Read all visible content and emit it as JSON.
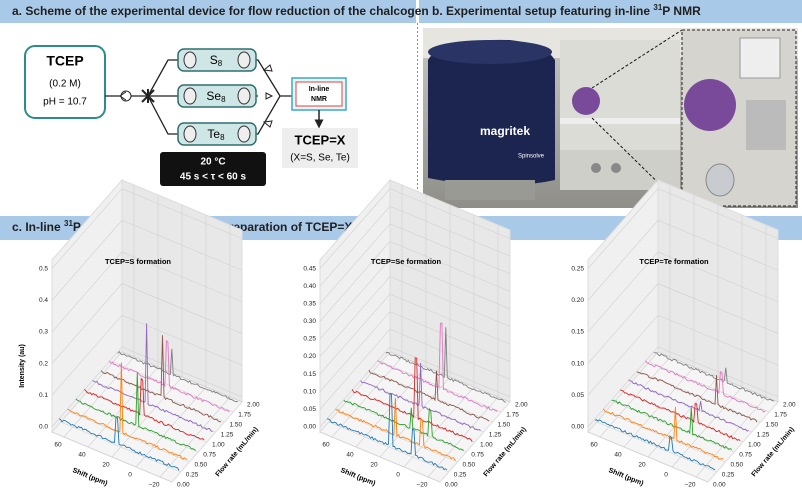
{
  "panel_a": {
    "title": "a. Scheme of the experimental device for flow reduction of the chalcogen",
    "reagent": {
      "name": "TCEP",
      "concentration": "(0.2 M)",
      "ph": "pH = 10.7"
    },
    "columns": [
      {
        "symbol": "S",
        "sub": "8"
      },
      {
        "symbol": "Se",
        "sub": "8"
      },
      {
        "symbol": "Te",
        "sub": "8"
      }
    ],
    "detector": [
      "In-line",
      "NMR"
    ],
    "conditions": [
      "20 °C",
      "45 s < τ < 60 s"
    ],
    "product": {
      "name": "TCEP=X",
      "scope": "(X=S, Se, Te)"
    }
  },
  "panel_b": {
    "title_parts": [
      "b. Experimental setup featuring in-line ",
      "31",
      "P NMR"
    ],
    "brand": "magritek",
    "model": "Spinsolve"
  },
  "panel_c": {
    "title_parts": [
      "c. In-line ",
      "31",
      "P NMR monitoring for the preparation of TCEP=X (S, Se, Te)"
    ],
    "plots": [
      {
        "title": "TCEP=S formation",
        "z_label": "Intensity (au)",
        "z_ticks": [
          "0.0",
          "0.1",
          "0.2",
          "0.3",
          "0.4",
          "0.5"
        ],
        "x_label": "Shift (ppm)",
        "x_ticks": [
          "60",
          "40",
          "20",
          "0",
          "−20"
        ],
        "y_label": "Flow rate (mL/min)",
        "y_ticks": [
          "0.00",
          "0.25",
          "0.50",
          "0.75",
          "1.00",
          "1.25",
          "1.50",
          "1.75",
          "2.00"
        ]
      },
      {
        "title": "TCEP=Se formation",
        "z_ticks": [
          "0.00",
          "0.05",
          "0.10",
          "0.15",
          "0.20",
          "0.25",
          "0.30",
          "0.35",
          "0.40",
          "0.45"
        ],
        "x_label": "Shift (ppm)",
        "x_ticks": [
          "60",
          "40",
          "20",
          "0",
          "−20"
        ],
        "y_label": "Flow rate (mL/min)",
        "y_ticks": [
          "0.00",
          "0.25",
          "0.50",
          "0.75",
          "1.00",
          "1.25",
          "1.50",
          "1.75",
          "2.00"
        ]
      },
      {
        "title": "TCEP=Te formation",
        "z_ticks": [
          "0.00",
          "0.05",
          "0.10",
          "0.15",
          "0.20",
          "0.25"
        ],
        "x_label": "Shift (ppm)",
        "x_ticks": [
          "60",
          "40",
          "20",
          "0",
          "−20"
        ],
        "y_label": "Flow rate (mL/min)",
        "y_ticks": [
          "0.00",
          "0.25",
          "0.50",
          "0.75",
          "1.00",
          "1.25",
          "1.50",
          "1.75",
          "2.00"
        ]
      }
    ]
  }
}
